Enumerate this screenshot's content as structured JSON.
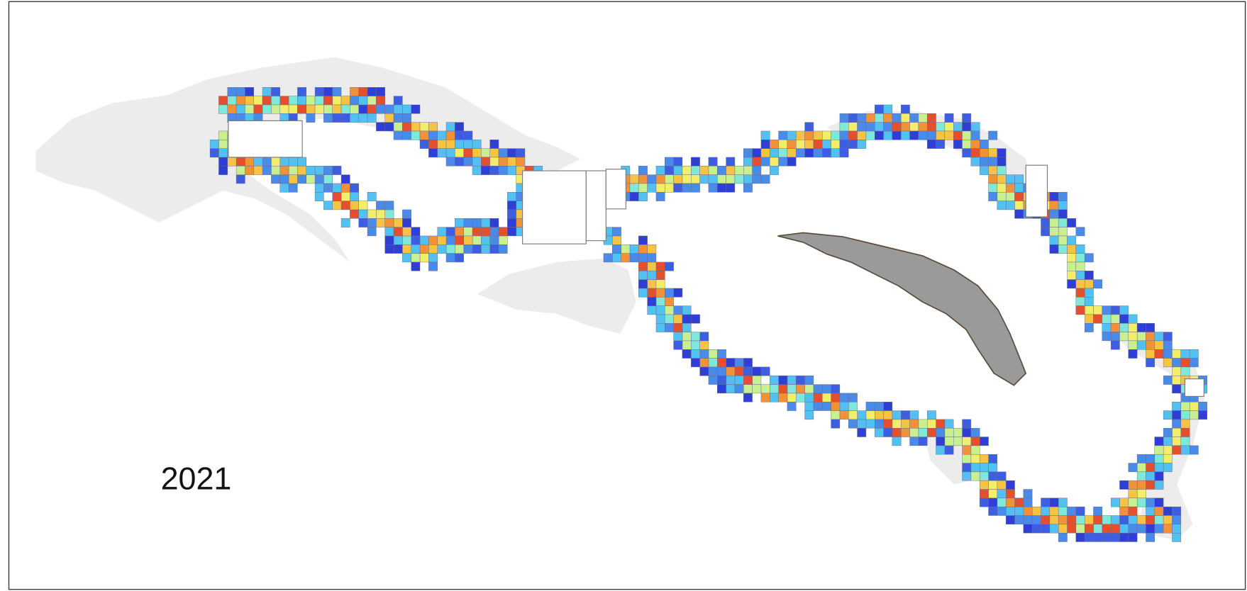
{
  "map": {
    "year_label": "2021"
  }
}
